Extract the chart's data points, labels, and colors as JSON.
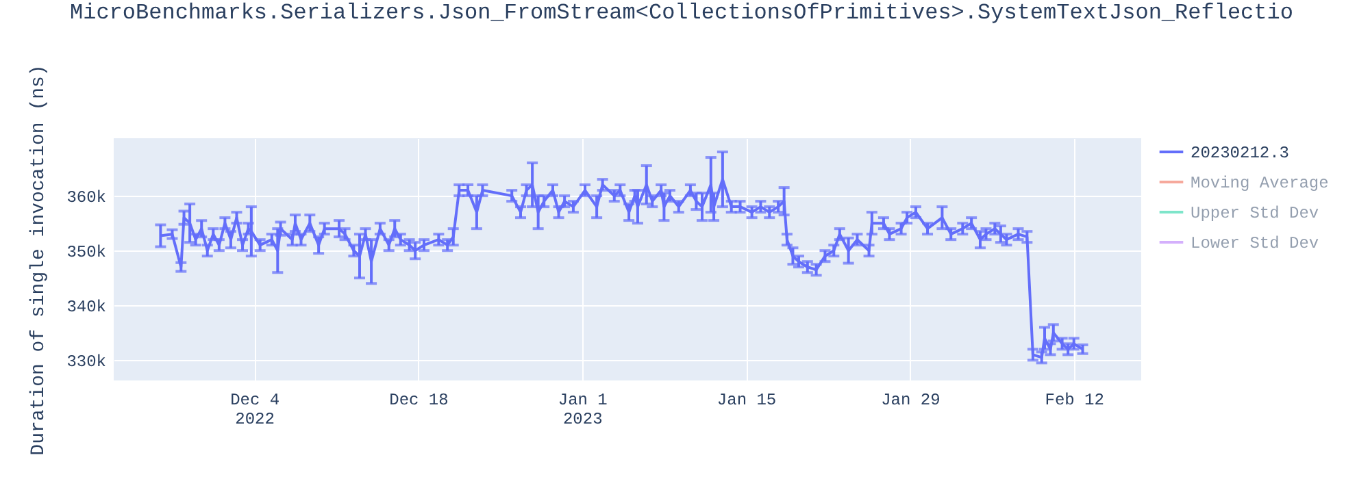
{
  "chart_data": {
    "type": "line",
    "title": "MicroBenchmarks.Serializers.Json_FromStream<CollectionsOfPrimitives>.SystemTextJson_Reflectio",
    "ylabel": "Duration of single invocation (ns)",
    "xlim": [
      "2022-11-22T00:00",
      "2023-02-17T18:00"
    ],
    "xticks": [
      {
        "value": "2022-12-04",
        "label": "Dec 4\n2022"
      },
      {
        "value": "2022-12-18",
        "label": "Dec 18"
      },
      {
        "value": "2023-01-01",
        "label": "Jan 1\n2023"
      },
      {
        "value": "2023-01-15",
        "label": "Jan 15"
      },
      {
        "value": "2023-01-29",
        "label": "Jan 29"
      },
      {
        "value": "2023-02-12",
        "label": "Feb 12"
      }
    ],
    "ylim": [
      326300,
      370500
    ],
    "yticks": [
      {
        "value": 330000,
        "label": "330k"
      },
      {
        "value": 340000,
        "label": "340k"
      },
      {
        "value": 350000,
        "label": "350k"
      },
      {
        "value": 360000,
        "label": "360k"
      }
    ],
    "grid": true,
    "legend": "top right",
    "line_style": "solid",
    "series": [
      {
        "name": "20230212.3",
        "color": "#636efa",
        "x": [
          "2022-11-26T00:00",
          "2022-11-27T00:00",
          "2022-11-27T18:00",
          "2022-11-28T00:00",
          "2022-11-28T12:00",
          "2022-11-29T00:00",
          "2022-11-29T12:00",
          "2022-11-30T00:00",
          "2022-11-30T12:00",
          "2022-12-01T00:00",
          "2022-12-01T12:00",
          "2022-12-02T00:00",
          "2022-12-02T12:00",
          "2022-12-03T00:00",
          "2022-12-03T12:00",
          "2022-12-03T18:00",
          "2022-12-04T12:00",
          "2022-12-05T12:00",
          "2022-12-06T00:00",
          "2022-12-06T06:00",
          "2022-12-07T06:00",
          "2022-12-07T12:00",
          "2022-12-08T00:00",
          "2022-12-08T18:00",
          "2022-12-09T12:00",
          "2022-12-10T00:00",
          "2022-12-11T06:00",
          "2022-12-11T18:00",
          "2022-12-12T12:00",
          "2022-12-13T00:00",
          "2022-12-13T12:00",
          "2022-12-14T00:00",
          "2022-12-14T18:00",
          "2022-12-15T12:00",
          "2022-12-16T00:00",
          "2022-12-16T12:00",
          "2022-12-17T06:00",
          "2022-12-17T18:00",
          "2022-12-18T12:00",
          "2022-12-19T18:00",
          "2022-12-20T12:00",
          "2022-12-21T00:00",
          "2022-12-21T12:00",
          "2022-12-22T06:00",
          "2022-12-23T00:00",
          "2022-12-23T12:00",
          "2022-12-26T00:00",
          "2022-12-26T18:00",
          "2022-12-27T06:00",
          "2022-12-27T18:00",
          "2022-12-28T06:00",
          "2022-12-28T18:00",
          "2022-12-29T12:00",
          "2022-12-30T00:00",
          "2022-12-30T12:00",
          "2022-12-31T06:00",
          "2023-01-01T06:00",
          "2023-01-02T06:00",
          "2023-01-02T18:00",
          "2023-01-03T18:00",
          "2023-01-04T06:00",
          "2023-01-05T00:00",
          "2023-01-05T12:00",
          "2023-01-05T18:00",
          "2023-01-06T12:00",
          "2023-01-07T00:00",
          "2023-01-07T18:00",
          "2023-01-08T00:00",
          "2023-01-08T12:00",
          "2023-01-09T06:00",
          "2023-01-10T06:00",
          "2023-01-10T18:00",
          "2023-01-11T06:00",
          "2023-01-12T00:00",
          "2023-01-12T06:00",
          "2023-01-13T00:00",
          "2023-01-13T18:00",
          "2023-01-14T12:00",
          "2023-01-15T12:00",
          "2023-01-16T06:00",
          "2023-01-17T00:00",
          "2023-01-17T18:00",
          "2023-01-18T06:00",
          "2023-01-18T12:00",
          "2023-01-19T00:00",
          "2023-01-19T12:00",
          "2023-01-20T06:00",
          "2023-01-21T00:00",
          "2023-01-21T18:00",
          "2023-01-22T12:00",
          "2023-01-23T00:00",
          "2023-01-23T18:00",
          "2023-01-24T12:00",
          "2023-01-25T12:00",
          "2023-01-25T18:00",
          "2023-01-26T18:00",
          "2023-01-27T06:00",
          "2023-01-28T06:00",
          "2023-01-28T18:00",
          "2023-01-29T12:00",
          "2023-01-30T12:00",
          "2023-01-31T18:00",
          "2023-02-01T12:00",
          "2023-02-02T12:00",
          "2023-02-03T06:00",
          "2023-02-04T00:00",
          "2023-02-04T12:00",
          "2023-02-05T06:00",
          "2023-02-05T18:00",
          "2023-02-06T06:00",
          "2023-02-07T06:00",
          "2023-02-08T00:00",
          "2023-02-08T12:00",
          "2023-02-09T06:00",
          "2023-02-09T12:00",
          "2023-02-10T00:00",
          "2023-02-10T06:00",
          "2023-02-11T00:00",
          "2023-02-11T12:00",
          "2023-02-12T00:00",
          "2023-02-12T18:00"
        ],
        "values": [
          352700,
          353000,
          347000,
          356000,
          355000,
          352000,
          354000,
          350000,
          353000,
          351000,
          355000,
          352000,
          356000,
          351000,
          354000,
          353500,
          351000,
          352000,
          350000,
          354000,
          352000,
          355000,
          352000,
          355000,
          351000,
          354000,
          354000,
          353000,
          350000,
          349000,
          353000,
          348000,
          354000,
          351000,
          354000,
          352000,
          351000,
          350000,
          351000,
          352000,
          351000,
          352500,
          361000,
          361000,
          357000,
          361000,
          360000,
          357000,
          361000,
          362000,
          357000,
          359000,
          361000,
          357000,
          359000,
          358000,
          361000,
          358000,
          362000,
          360000,
          361000,
          357000,
          360000,
          358000,
          362000,
          359000,
          361000,
          358000,
          360000,
          358000,
          361000,
          359000,
          358000,
          362000,
          358000,
          363000,
          358000,
          358000,
          357000,
          358000,
          357000,
          358000,
          359000,
          352000,
          349000,
          348000,
          347000,
          346500,
          349000,
          350000,
          353000,
          350000,
          352000,
          350000,
          355000,
          355000,
          353000,
          354000,
          356000,
          357000,
          354000,
          356000,
          353000,
          354000,
          355000,
          352000,
          353000,
          354000,
          353000,
          352000,
          353000,
          352500,
          331000,
          330500,
          334000,
          332000,
          335000,
          333000,
          332000,
          333000,
          332000
        ],
        "errors": [
          2000,
          800,
          800,
          1200,
          3500,
          1000,
          1500,
          1000,
          1000,
          1000,
          1000,
          1500,
          1000,
          1000,
          1000,
          4500,
          1000,
          1000,
          4000,
          1200,
          1000,
          1500,
          1000,
          1500,
          1500,
          1000,
          1500,
          1000,
          1000,
          4000,
          1000,
          4000,
          1000,
          1000,
          1500,
          1000,
          1000,
          1500,
          1000,
          1000,
          1000,
          1500,
          1000,
          1000,
          3000,
          1000,
          1000,
          1000,
          1000,
          4000,
          3000,
          1000,
          1000,
          1000,
          1000,
          1000,
          1000,
          2000,
          1000,
          1000,
          1000,
          1500,
          1000,
          3000,
          3500,
          1000,
          1000,
          2500,
          1000,
          1000,
          1000,
          1500,
          2500,
          5000,
          2500,
          5000,
          1000,
          1000,
          1000,
          1000,
          1000,
          1000,
          2500,
          1000,
          1500,
          1000,
          1000,
          1000,
          1000,
          1000,
          1000,
          2300,
          1000,
          1000,
          2000,
          1000,
          1000,
          1000,
          1000,
          1000,
          1000,
          2000,
          1000,
          1000,
          1000,
          1500,
          1000,
          1000,
          1500,
          1000,
          1000,
          1000,
          1000,
          1000,
          2000,
          1000,
          1500,
          1000,
          1000,
          1000,
          800
        ]
      },
      {
        "name": "Moving Average",
        "color": "#ef553b"
      },
      {
        "name": "Upper Std Dev",
        "color": "#00cc96"
      },
      {
        "name": "Lower Std Dev",
        "color": "#ab63fa"
      }
    ]
  }
}
